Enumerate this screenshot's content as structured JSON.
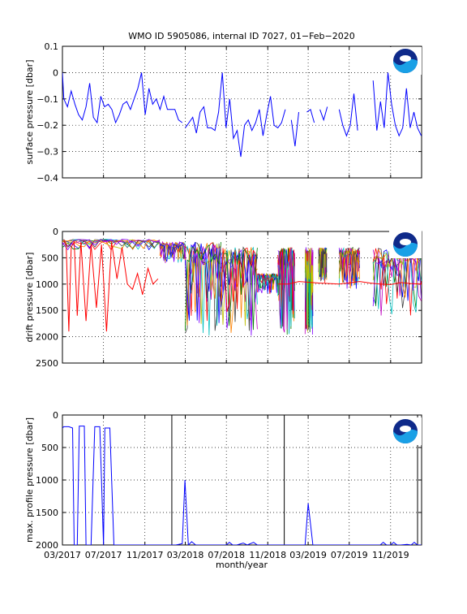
{
  "figure": {
    "title": "WMO ID 5905086, internal ID 7027, 01−Feb−2020",
    "xlabel": "month/year",
    "xticks": [
      "03/2017",
      "07/2017",
      "11/2017",
      "03/2018",
      "07/2018",
      "11/2018",
      "03/2019",
      "07/2019",
      "11/2019"
    ],
    "xlim": [
      "2017-03",
      "2020-02"
    ],
    "logo": "noaa-logo"
  },
  "chart_data": [
    {
      "type": "line",
      "title": "WMO ID 5905086, internal ID 7027, 01−Feb−2020",
      "ylabel": "surface pressure [dbar]",
      "ylim": [
        -0.4,
        0.1
      ],
      "yticks": [
        "0.1",
        "0",
        "−0.1",
        "−0.2",
        "−0.3",
        "−0.4"
      ],
      "grid": true,
      "color": "#0000ff",
      "series": [
        {
          "x": [
            "2017-03-01",
            "2017-03-05",
            "2017-03-16",
            "2017-03-27",
            "2017-04-07",
            "2017-04-18",
            "2017-04-29",
            "2017-05-10",
            "2017-05-21",
            "2017-06-01",
            "2017-06-12",
            "2017-06-23",
            "2017-07-04",
            "2017-07-15",
            "2017-07-26",
            "2017-08-06",
            "2017-08-17",
            "2017-08-28",
            "2017-09-08",
            "2017-09-19",
            "2017-09-30",
            "2017-10-11",
            "2017-10-22",
            "2017-11-02",
            "2017-11-13",
            "2017-11-24",
            "2017-12-05",
            "2017-12-16",
            "2017-12-27",
            "2018-01-07",
            "2018-01-18",
            "2018-01-29",
            "2018-02-09",
            "2018-02-20"
          ],
          "y": [
            0.0,
            -0.1,
            -0.13,
            -0.07,
            -0.12,
            -0.16,
            -0.18,
            -0.13,
            -0.04,
            -0.17,
            -0.19,
            -0.09,
            -0.13,
            -0.12,
            -0.14,
            -0.19,
            -0.16,
            -0.12,
            -0.11,
            -0.14,
            -0.1,
            -0.06,
            0.0,
            -0.16,
            -0.06,
            -0.12,
            -0.1,
            -0.14,
            -0.09,
            -0.14,
            -0.14,
            -0.14,
            -0.18,
            -0.19
          ]
        },
        {
          "x": [
            "2018-03-01",
            "2018-03-12",
            "2018-03-23",
            "2018-04-03",
            "2018-04-14",
            "2018-04-25",
            "2018-05-06",
            "2018-05-17",
            "2018-05-28",
            "2018-06-08",
            "2018-06-19",
            "2018-06-30",
            "2018-07-11",
            "2018-07-22",
            "2018-08-02",
            "2018-08-13",
            "2018-08-24",
            "2018-09-04",
            "2018-09-15",
            "2018-09-26",
            "2018-10-07",
            "2018-10-18",
            "2018-10-29",
            "2018-11-09",
            "2018-11-20",
            "2018-12-01",
            "2018-12-12",
            "2018-12-23"
          ],
          "y": [
            -0.21,
            -0.19,
            -0.17,
            -0.23,
            -0.15,
            -0.13,
            -0.21,
            -0.21,
            -0.22,
            -0.15,
            0.0,
            -0.21,
            -0.1,
            -0.25,
            -0.22,
            -0.32,
            -0.2,
            -0.18,
            -0.22,
            -0.19,
            -0.14,
            -0.24,
            -0.16,
            -0.09,
            -0.2,
            -0.21,
            -0.19,
            -0.14
          ]
        },
        {
          "x": [
            "2019-01-10",
            "2019-01-21",
            "2019-02-01"
          ],
          "y": [
            -0.18,
            -0.28,
            -0.15
          ]
        },
        {
          "x": [
            "2019-02-25",
            "2019-03-08",
            "2019-03-19"
          ],
          "y": [
            -0.15,
            -0.14,
            -0.19
          ]
        },
        {
          "x": [
            "2019-04-05",
            "2019-04-16",
            "2019-04-27"
          ],
          "y": [
            -0.14,
            -0.18,
            -0.13
          ]
        },
        {
          "x": [
            "2019-06-01",
            "2019-06-12",
            "2019-06-23",
            "2019-07-04",
            "2019-07-15",
            "2019-07-26"
          ],
          "y": [
            -0.14,
            -0.2,
            -0.24,
            -0.2,
            -0.08,
            -0.22
          ]
        },
        {
          "x": [
            "2019-09-10",
            "2019-09-21",
            "2019-10-02",
            "2019-10-13",
            "2019-10-24",
            "2019-11-04",
            "2019-11-15",
            "2019-11-26",
            "2019-12-07",
            "2019-12-18",
            "2019-12-29",
            "2020-01-09",
            "2020-01-20",
            "2020-01-31"
          ],
          "y": [
            -0.03,
            -0.22,
            -0.11,
            -0.21,
            0.0,
            -0.12,
            -0.2,
            -0.24,
            -0.21,
            -0.06,
            -0.21,
            -0.15,
            -0.21,
            -0.24
          ]
        }
      ]
    },
    {
      "type": "line",
      "ylabel": "drift pressure [dbar]",
      "ylim": [
        0,
        2500
      ],
      "yreversed": true,
      "yticks": [
        "0",
        "500",
        "1000",
        "1500",
        "2000",
        "2500"
      ],
      "grid": true,
      "note": "many overlapping multi-colored drift pressure traces per cycle",
      "series": [
        {
          "name": "",
          "color": "#ff0000",
          "x": [
            "2017-03-05",
            "2017-03-12",
            "2017-03-20",
            "2017-03-27",
            "2017-04-05",
            "2017-04-14",
            "2017-04-25",
            "2017-05-10",
            "2017-05-25",
            "2017-06-10",
            "2017-06-25",
            "2017-07-10",
            "2017-07-25",
            "2017-08-10",
            "2017-08-25",
            "2017-09-10",
            "2017-09-25",
            "2017-10-10",
            "2017-10-25",
            "2017-11-10",
            "2017-11-25",
            "2017-12-10"
          ],
          "y": [
            150,
            250,
            1900,
            300,
            200,
            1600,
            200,
            1700,
            250,
            1450,
            250,
            1900,
            200,
            900,
            300,
            1000,
            1100,
            800,
            1200,
            700,
            1000,
            900
          ]
        },
        {
          "name": "",
          "color": "#ff0000",
          "x": [
            "2018-12-01",
            "2019-01-01",
            "2019-02-01",
            "2019-04-01",
            "2019-06-01",
            "2019-08-01",
            "2019-09-01",
            "2019-10-01",
            "2019-11-01",
            "2019-12-01",
            "2020-01-01",
            "2020-01-31"
          ],
          "y": [
            1000,
            1000,
            950,
            980,
            1000,
            950,
            980,
            1000,
            1010,
            970,
            990,
            1000
          ]
        }
      ]
    },
    {
      "type": "line",
      "ylabel": "max. profile pressure [dbar]",
      "ylim": [
        0,
        2000
      ],
      "yreversed": true,
      "yticks": [
        "0",
        "500",
        "1000",
        "1500",
        "2000"
      ],
      "grid": true,
      "vlines": [
        "2018-01-20",
        "2018-12-20",
        "2020-01-20"
      ],
      "series": [
        {
          "color": "#0000ff",
          "x": [
            "2017-03-01",
            "2017-03-05",
            "2017-03-20",
            "2017-03-31",
            "2017-04-05",
            "2017-04-14",
            "2017-04-20",
            "2017-05-05",
            "2017-05-10",
            "2017-05-25",
            "2017-06-05",
            "2017-06-12",
            "2017-06-20",
            "2017-07-01",
            "2017-07-05",
            "2017-07-12",
            "2017-07-20",
            "2017-08-01",
            "2017-08-15",
            "2017-09-01",
            "2017-10-01",
            "2017-11-01",
            "2017-12-01",
            "2018-01-01",
            "2018-02-01",
            "2018-02-20",
            "2018-02-28",
            "2018-03-10",
            "2018-03-20",
            "2018-04-01",
            "2018-05-01",
            "2018-06-01",
            "2018-07-01",
            "2018-07-10",
            "2018-07-20",
            "2018-08-01",
            "2018-08-20",
            "2018-09-01",
            "2018-09-20",
            "2018-10-01",
            "2018-10-20",
            "2018-11-01",
            "2018-12-01",
            "2019-01-01",
            "2019-02-01",
            "2019-02-20",
            "2019-03-01",
            "2019-03-15",
            "2019-04-01",
            "2019-05-01",
            "2019-06-01",
            "2019-07-01",
            "2019-08-01",
            "2019-09-01",
            "2019-10-01",
            "2019-10-10",
            "2019-10-20",
            "2019-11-01",
            "2019-11-10",
            "2019-11-20",
            "2019-12-01",
            "2019-12-20",
            "2020-01-01",
            "2020-01-10",
            "2020-01-20",
            "2020-01-31"
          ],
          "y": [
            200,
            180,
            180,
            200,
            2000,
            2000,
            170,
            170,
            2000,
            2000,
            180,
            180,
            180,
            2000,
            200,
            200,
            200,
            2000,
            2000,
            2000,
            2000,
            2000,
            2000,
            2000,
            2000,
            1980,
            1000,
            2000,
            1950,
            2000,
            2000,
            2000,
            2000,
            1960,
            2000,
            2000,
            1970,
            2000,
            1960,
            2000,
            2000,
            2000,
            2000,
            2000,
            2000,
            2000,
            1360,
            2000,
            2000,
            2000,
            2000,
            2000,
            2000,
            2000,
            2000,
            1960,
            2000,
            2000,
            1960,
            2000,
            2000,
            1990,
            2000,
            1960,
            2000,
            2000
          ]
        }
      ]
    }
  ]
}
